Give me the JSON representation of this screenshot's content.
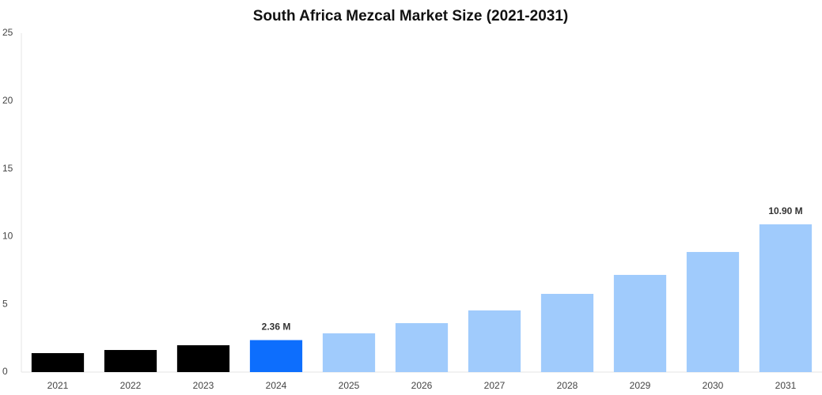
{
  "chart_data": {
    "type": "bar",
    "title": "South Africa Mezcal Market Size (2021-2031)",
    "categories": [
      "2021",
      "2022",
      "2023",
      "2024",
      "2025",
      "2026",
      "2027",
      "2028",
      "2029",
      "2030",
      "2031"
    ],
    "values": [
      1.4,
      1.63,
      1.98,
      2.36,
      2.86,
      3.61,
      4.55,
      5.77,
      7.17,
      8.86,
      10.9
    ],
    "value_labels": [
      null,
      null,
      null,
      "2.36 M",
      null,
      null,
      null,
      null,
      null,
      null,
      "10.90 M"
    ],
    "colors": [
      "#000000",
      "#000000",
      "#000000",
      "#0d6efd",
      "#a0cbfc",
      "#a0cbfc",
      "#a0cbfc",
      "#a0cbfc",
      "#a0cbfc",
      "#a0cbfc",
      "#a0cbfc"
    ],
    "ylim": [
      0,
      25
    ],
    "yticks": [
      0,
      5,
      10,
      15,
      20,
      25
    ],
    "grid": false
  }
}
